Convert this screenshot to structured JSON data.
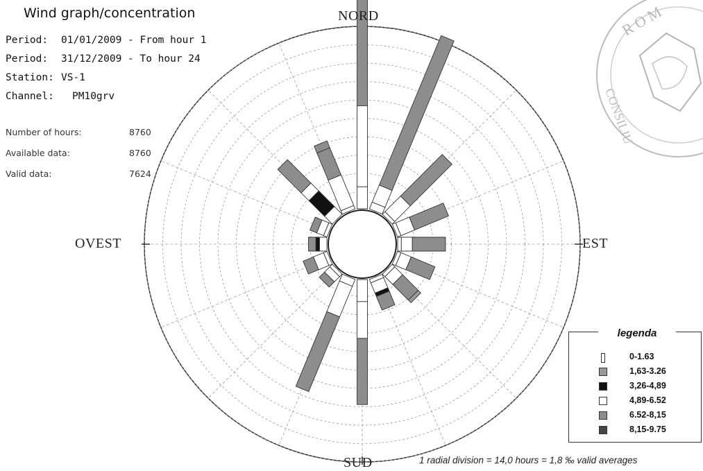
{
  "header": {
    "title": "Wind graph/concentration",
    "period_start": {
      "label": "Period:",
      "value": "01/01/2009 - From hour 1"
    },
    "period_end": {
      "label": "Period:",
      "value": "31/12/2009 - To hour 24"
    },
    "station": {
      "label": "Station:",
      "value": "VS-1"
    },
    "channel": {
      "label": "Channel:",
      "value": "PM10grv"
    }
  },
  "stats": {
    "hours": {
      "label": "Number of hours:",
      "value": "8760"
    },
    "available": {
      "label": "Available data:",
      "value": "8760"
    },
    "valid": {
      "label": "Valid data:",
      "value": "7624"
    }
  },
  "directions": {
    "north": "NORD",
    "east": "EST",
    "south": "SUD",
    "west": "OVEST"
  },
  "note": "1 radial division = 14,0 hours = 1,8 ‰ valid averages",
  "colors": {
    "light_gray": "#e2e2e2",
    "mid_gray": "#8d8d8d",
    "black": "#111111",
    "white": "#ffffff",
    "dark": "#454545"
  },
  "chart_data": {
    "type": "wind-rose",
    "direction_labels": [
      "NORD",
      "EST",
      "SUD",
      "OVEST"
    ],
    "legend_title": "legenda",
    "radial_unit_hours": 14.0,
    "radial_divisions": 10,
    "classes": [
      {
        "label": "0-1.63",
        "color": "#ffffff"
      },
      {
        "label": "1,63-3.26",
        "color": "#9a9a9a"
      },
      {
        "label": "3,26-4,89",
        "color": "#111111"
      },
      {
        "label": "4,89-6.52",
        "color": "#ffffff"
      },
      {
        "label": "6.52-8,15",
        "color": "#8d8d8d"
      },
      {
        "label": "8,15-9.75",
        "color": "#454545"
      }
    ],
    "sectors": [
      {
        "angle": 0,
        "segments": [
          [
            0,
            1.2
          ],
          [
            3,
            4.4
          ],
          [
            4,
            12.4
          ],
          [
            5,
            0.2
          ]
        ]
      },
      {
        "angle": 22.5,
        "segments": [
          [
            0,
            0.4
          ],
          [
            3,
            1.0
          ],
          [
            4,
            8.8
          ]
        ]
      },
      {
        "angle": 45,
        "segments": [
          [
            0,
            0.2
          ],
          [
            3,
            1.2
          ],
          [
            4,
            3.2
          ]
        ]
      },
      {
        "angle": 67.5,
        "segments": [
          [
            0,
            0.2
          ],
          [
            3,
            0.8
          ],
          [
            4,
            2.0
          ]
        ]
      },
      {
        "angle": 90,
        "segments": [
          [
            0,
            0.2
          ],
          [
            3,
            0.6
          ],
          [
            4,
            1.8
          ]
        ]
      },
      {
        "angle": 112.5,
        "segments": [
          [
            0,
            0.2
          ],
          [
            3,
            0.6
          ],
          [
            4,
            1.4
          ]
        ]
      },
      {
        "angle": 135,
        "segments": [
          [
            0,
            0.2
          ],
          [
            3,
            0.6
          ],
          [
            4,
            1.2
          ],
          [
            1,
            0.2
          ]
        ]
      },
      {
        "angle": 157.5,
        "segments": [
          [
            0,
            0.2
          ],
          [
            3,
            0.6
          ],
          [
            2,
            0.2
          ],
          [
            4,
            0.8
          ]
        ]
      },
      {
        "angle": 180,
        "segments": [
          [
            0,
            1.2
          ],
          [
            3,
            2.0
          ],
          [
            4,
            3.6
          ]
        ]
      },
      {
        "angle": 202.5,
        "segments": [
          [
            0,
            0.4
          ],
          [
            3,
            1.8
          ],
          [
            4,
            4.4
          ]
        ]
      },
      {
        "angle": 225,
        "segments": [
          [
            0,
            0.2
          ],
          [
            3,
            0.4
          ],
          [
            4,
            0.4
          ]
        ]
      },
      {
        "angle": 247.5,
        "segments": [
          [
            0,
            0.2
          ],
          [
            3,
            0.6
          ],
          [
            4,
            0.6
          ]
        ]
      },
      {
        "angle": 270,
        "segments": [
          [
            0,
            0.4
          ],
          [
            2,
            0.2
          ],
          [
            4,
            0.4
          ]
        ]
      },
      {
        "angle": 292.5,
        "segments": [
          [
            0,
            0.2
          ],
          [
            3,
            0.4
          ],
          [
            4,
            0.4
          ]
        ]
      },
      {
        "angle": 315,
        "segments": [
          [
            0,
            0.6
          ],
          [
            2,
            1.2
          ],
          [
            3,
            0.6
          ],
          [
            4,
            1.8
          ]
        ]
      },
      {
        "angle": 337.5,
        "segments": [
          [
            0,
            0.2
          ],
          [
            3,
            1.8
          ],
          [
            4,
            1.6
          ],
          [
            4,
            0.4
          ]
        ]
      }
    ]
  }
}
